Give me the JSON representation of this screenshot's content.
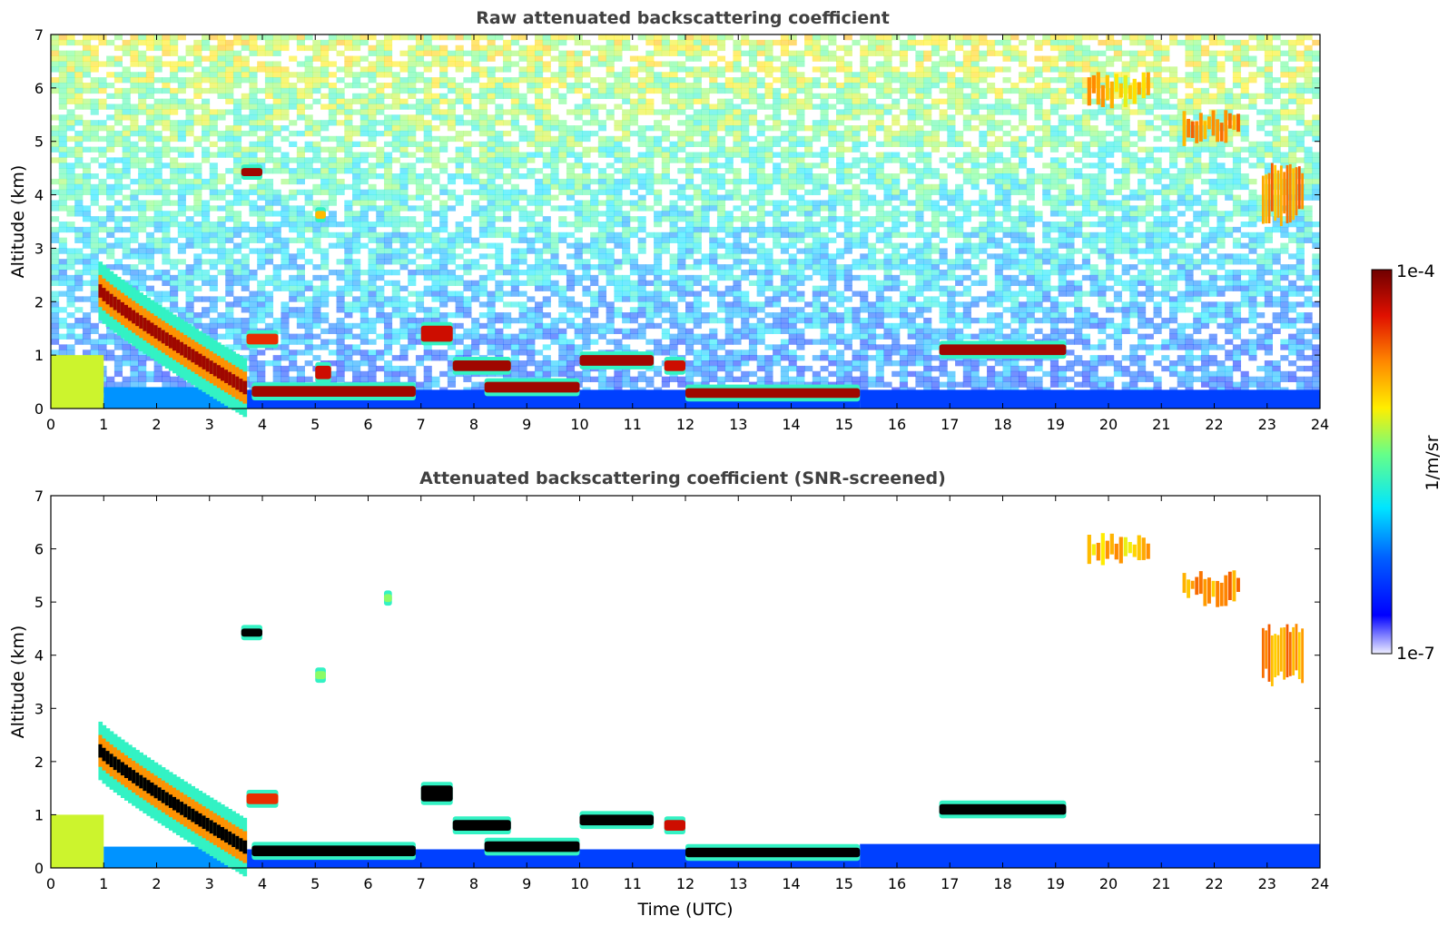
{
  "colors": {
    "low": "#ffffff",
    "blue": "#0010ff",
    "cyan": "#00e5ff",
    "green": "#66ff66",
    "yellow": "#ffe000",
    "orange": "#ff8800",
    "red": "#e01000",
    "darkred": "#7a0000",
    "black": "#000000"
  },
  "chart_data": [
    {
      "type": "heatmap",
      "title": "Raw attenuated backscattering coefficient",
      "xlabel": "",
      "ylabel": "Altitude (km)",
      "xlim": [
        0,
        24
      ],
      "ylim": [
        0,
        7
      ],
      "xticks": [
        "0",
        "1",
        "2",
        "3",
        "4",
        "5",
        "6",
        "7",
        "8",
        "9",
        "10",
        "11",
        "12",
        "13",
        "14",
        "15",
        "16",
        "17",
        "18",
        "19",
        "20",
        "21",
        "22",
        "23",
        "24"
      ],
      "yticks": [
        "0",
        "1",
        "2",
        "3",
        "4",
        "5",
        "6",
        "7"
      ],
      "background_noise": true,
      "features": [
        {
          "kind": "aerosol",
          "x": [
            0.0,
            1.0
          ],
          "y": [
            0.0,
            1.0
          ],
          "level": 0.6
        },
        {
          "kind": "aerosol",
          "x": [
            1.0,
            3.7
          ],
          "y": [
            0.0,
            0.4
          ],
          "level": 0.3
        },
        {
          "kind": "aerosol",
          "x": [
            3.7,
            15.3
          ],
          "y": [
            0.0,
            0.35
          ],
          "level": 0.2
        },
        {
          "kind": "aerosol",
          "x": [
            15.3,
            24.0
          ],
          "y": [
            0.0,
            0.35
          ],
          "level": 0.2
        },
        {
          "kind": "plume",
          "x": [
            0.9,
            3.7
          ],
          "y0": 2.2,
          "y1": 0.35,
          "thickness": 0.25,
          "level": 0.95
        },
        {
          "kind": "layer",
          "x": [
            3.8,
            6.9
          ],
          "y": [
            0.22,
            0.42
          ],
          "level": 0.95
        },
        {
          "kind": "layer",
          "x": [
            3.7,
            4.3
          ],
          "y": [
            1.2,
            1.4
          ],
          "level": 0.85
        },
        {
          "kind": "layer",
          "x": [
            5.0,
            5.3
          ],
          "y": [
            0.55,
            0.8
          ],
          "level": 0.9
        },
        {
          "kind": "layer",
          "x": [
            7.0,
            7.6
          ],
          "y": [
            1.25,
            1.55
          ],
          "level": 0.9
        },
        {
          "kind": "layer",
          "x": [
            7.6,
            8.7
          ],
          "y": [
            0.7,
            0.9
          ],
          "level": 0.95
        },
        {
          "kind": "layer",
          "x": [
            8.2,
            10.0
          ],
          "y": [
            0.3,
            0.5
          ],
          "level": 0.95
        },
        {
          "kind": "layer",
          "x": [
            10.0,
            11.4
          ],
          "y": [
            0.8,
            1.0
          ],
          "level": 0.95
        },
        {
          "kind": "layer",
          "x": [
            11.6,
            12.0
          ],
          "y": [
            0.7,
            0.9
          ],
          "level": 0.9
        },
        {
          "kind": "layer",
          "x": [
            12.0,
            15.3
          ],
          "y": [
            0.2,
            0.38
          ],
          "level": 0.95
        },
        {
          "kind": "layer",
          "x": [
            16.8,
            19.2
          ],
          "y": [
            1.0,
            1.2
          ],
          "level": 0.95
        },
        {
          "kind": "cloud",
          "x": [
            3.6,
            4.0
          ],
          "y": [
            4.35,
            4.5
          ],
          "level": 0.95
        },
        {
          "kind": "cloud",
          "x": [
            5.0,
            5.2
          ],
          "y": [
            3.55,
            3.7
          ],
          "level": 0.7
        },
        {
          "kind": "cirrus",
          "x": [
            19.6,
            20.8
          ],
          "y": [
            5.6,
            6.3
          ],
          "level": 0.7
        },
        {
          "kind": "cirrus",
          "x": [
            21.4,
            22.5
          ],
          "y": [
            4.9,
            5.6
          ],
          "level": 0.75
        },
        {
          "kind": "cirrus",
          "x": [
            22.9,
            23.7
          ],
          "y": [
            3.4,
            4.6
          ],
          "level": 0.75
        }
      ]
    },
    {
      "type": "heatmap",
      "title": "Attenuated backscattering coefficient (SNR-screened)",
      "xlabel": "Time (UTC)",
      "ylabel": "Altitude (km)",
      "xlim": [
        0,
        24
      ],
      "ylim": [
        0,
        7
      ],
      "xticks": [
        "0",
        "1",
        "2",
        "3",
        "4",
        "5",
        "6",
        "7",
        "8",
        "9",
        "10",
        "11",
        "12",
        "13",
        "14",
        "15",
        "16",
        "17",
        "18",
        "19",
        "20",
        "21",
        "22",
        "23",
        "24"
      ],
      "yticks": [
        "0",
        "1",
        "2",
        "3",
        "4",
        "5",
        "6",
        "7"
      ],
      "background_noise": false,
      "features": [
        {
          "kind": "aerosol",
          "x": [
            0.0,
            1.0
          ],
          "y": [
            0.0,
            1.0
          ],
          "level": 0.6
        },
        {
          "kind": "aerosol",
          "x": [
            1.0,
            3.7
          ],
          "y": [
            0.0,
            0.4
          ],
          "level": 0.3
        },
        {
          "kind": "aerosol",
          "x": [
            3.7,
            15.3
          ],
          "y": [
            0.0,
            0.35
          ],
          "level": 0.2
        },
        {
          "kind": "aerosol",
          "x": [
            15.3,
            24.0
          ],
          "y": [
            0.0,
            0.45
          ],
          "level": 0.2
        },
        {
          "kind": "plume",
          "x": [
            0.9,
            3.7
          ],
          "y0": 2.2,
          "y1": 0.35,
          "thickness": 0.25,
          "level": 1.0
        },
        {
          "kind": "layer",
          "x": [
            3.8,
            6.9
          ],
          "y": [
            0.22,
            0.42
          ],
          "level": 1.0
        },
        {
          "kind": "layer",
          "x": [
            3.7,
            4.3
          ],
          "y": [
            1.2,
            1.4
          ],
          "level": 0.85
        },
        {
          "kind": "layer",
          "x": [
            7.0,
            7.6
          ],
          "y": [
            1.25,
            1.55
          ],
          "level": 1.0
        },
        {
          "kind": "layer",
          "x": [
            7.6,
            8.7
          ],
          "y": [
            0.7,
            0.9
          ],
          "level": 1.0
        },
        {
          "kind": "layer",
          "x": [
            8.2,
            10.0
          ],
          "y": [
            0.3,
            0.5
          ],
          "level": 1.0
        },
        {
          "kind": "layer",
          "x": [
            10.0,
            11.4
          ],
          "y": [
            0.8,
            1.0
          ],
          "level": 1.0
        },
        {
          "kind": "layer",
          "x": [
            11.6,
            12.0
          ],
          "y": [
            0.7,
            0.9
          ],
          "level": 0.9
        },
        {
          "kind": "layer",
          "x": [
            12.0,
            15.3
          ],
          "y": [
            0.2,
            0.38
          ],
          "level": 1.0
        },
        {
          "kind": "layer",
          "x": [
            16.8,
            19.2
          ],
          "y": [
            1.0,
            1.2
          ],
          "level": 1.0
        },
        {
          "kind": "cloud",
          "x": [
            3.6,
            4.0
          ],
          "y": [
            4.35,
            4.5
          ],
          "level": 1.0
        },
        {
          "kind": "cloud",
          "x": [
            5.0,
            5.2
          ],
          "y": [
            3.55,
            3.7
          ],
          "level": 0.55
        },
        {
          "kind": "cloud",
          "x": [
            6.3,
            6.45
          ],
          "y": [
            5.0,
            5.15
          ],
          "level": 0.55
        },
        {
          "kind": "cirrus",
          "x": [
            19.6,
            20.8
          ],
          "y": [
            5.6,
            6.3
          ],
          "level": 0.7
        },
        {
          "kind": "cirrus",
          "x": [
            21.4,
            22.5
          ],
          "y": [
            4.9,
            5.6
          ],
          "level": 0.75
        },
        {
          "kind": "cirrus",
          "x": [
            22.9,
            23.7
          ],
          "y": [
            3.4,
            4.6
          ],
          "level": 0.75
        }
      ]
    }
  ],
  "colorbar": {
    "max_label": "1e-4",
    "min_label": "1e-7",
    "unit_label": "1/m/sr",
    "scale": "log"
  }
}
